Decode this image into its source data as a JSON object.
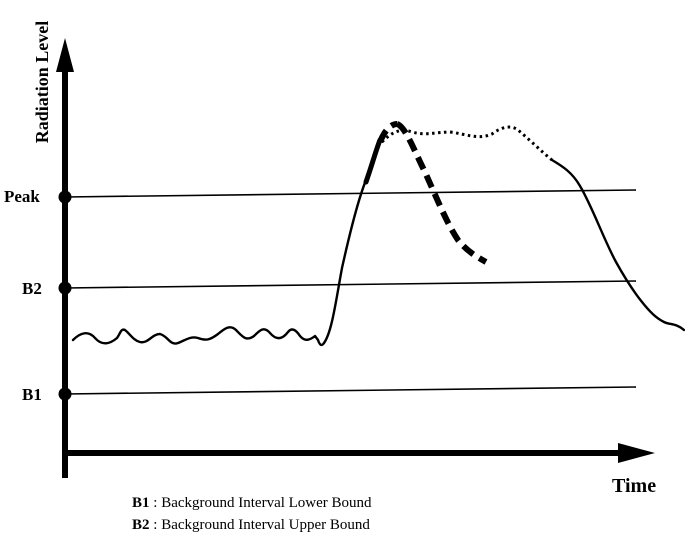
{
  "axes": {
    "y_label": "Radiation Level",
    "x_label": "Time"
  },
  "thresholds": [
    {
      "id": "peak",
      "label": "Peak"
    },
    {
      "id": "b2",
      "label": "B2"
    },
    {
      "id": "b1",
      "label": "B1"
    }
  ],
  "legend": [
    {
      "key": "B1",
      "separator": " : ",
      "text": "Background Interval Lower Bound"
    },
    {
      "key": "B2",
      "separator": " : ",
      "text": "Background Interval Upper Bound"
    }
  ]
}
